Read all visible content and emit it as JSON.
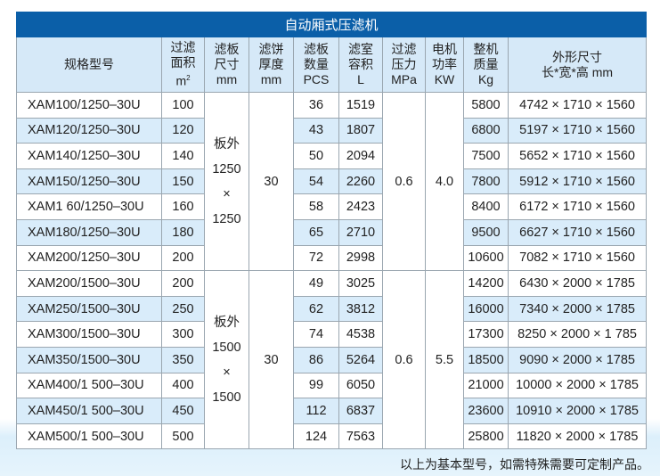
{
  "title": "自动厢式压滤机",
  "headers": [
    {
      "l1": "规格型号"
    },
    {
      "l1": "过滤",
      "l2": "面积",
      "l3": "m",
      "sup": "2"
    },
    {
      "l1": "滤板",
      "l2": "尺寸",
      "l3": "mm"
    },
    {
      "l1": "滤饼",
      "l2": "厚度",
      "l3": "mm"
    },
    {
      "l1": "滤板",
      "l2": "数量",
      "l3": "PCS"
    },
    {
      "l1": "滤室",
      "l2": "容积",
      "l3": "L"
    },
    {
      "l1": "过滤",
      "l2": "压力",
      "l3": "MPa"
    },
    {
      "l1": "电机",
      "l2": "功率",
      "l3": "KW"
    },
    {
      "l1": "整机",
      "l2": "质量",
      "l3": "Kg"
    },
    {
      "l1": "外形尺寸",
      "l2": "长*宽*高 mm"
    }
  ],
  "groups": [
    {
      "plate": {
        "a": "板外",
        "b": "1250",
        "c": "×",
        "d": "1250"
      },
      "cake": "30",
      "pressure": "0.6",
      "power": "4.0",
      "rows": [
        [
          "XAM100/1250–30U",
          "100",
          "36",
          "1519",
          "5800",
          "4742 × 1710 × 1560"
        ],
        [
          "XAM120/1250–30U",
          "120",
          "43",
          "1807",
          "6800",
          "5197 × 1710 × 1560"
        ],
        [
          "XAM140/1250–30U",
          "140",
          "50",
          "2094",
          "7500",
          "5652 × 1710 × 1560"
        ],
        [
          "XAM150/1250–30U",
          "150",
          "54",
          "2260",
          "7800",
          "5912 × 1710 × 1560"
        ],
        [
          "XAM1 60/1250–30U",
          "160",
          "58",
          "2423",
          "8400",
          "6172 × 1710 × 1560"
        ],
        [
          "XAM180/1250–30U",
          "180",
          "65",
          "2710",
          "9500",
          "6627 × 1710 × 1560"
        ],
        [
          "XAM200/1250–30U",
          "200",
          "72",
          "2998",
          "10600",
          "7082 × 1710 × 1560"
        ]
      ]
    },
    {
      "plate": {
        "a": "板外",
        "b": "1500",
        "c": "×",
        "d": "1500"
      },
      "cake": "30",
      "pressure": "0.6",
      "power": "5.5",
      "rows": [
        [
          "XAM200/1500–30U",
          "200",
          "49",
          "3025",
          "14200",
          "6430 × 2000 × 1785"
        ],
        [
          "XAM250/1500–30U",
          "250",
          "62",
          "3812",
          "16000",
          "7340 × 2000 × 1785"
        ],
        [
          "XAM300/1500–30U",
          "300",
          "74",
          "4538",
          "17300",
          "8250 × 2000 × 1 785"
        ],
        [
          "XAM350/1500–30U",
          "350",
          "86",
          "5264",
          "18500",
          "9090 × 2000 × 1785"
        ],
        [
          "XAM400/1 500–30U",
          "400",
          "99",
          "6050",
          "21000",
          "10000 × 2000 × 1785"
        ],
        [
          "XAM450/1 500–30U",
          "450",
          "112",
          "6837",
          "23600",
          "10910 × 2000 × 1785"
        ],
        [
          "XAM500/1 500–30U",
          "500",
          "124",
          "7563",
          "25800",
          "11820 × 2000 × 1785"
        ]
      ]
    }
  ],
  "shaded_rows": [
    [
      1,
      3,
      5
    ],
    [
      1,
      3,
      5
    ]
  ],
  "note": "以上为基本型号，如需特殊需要可定制产品。",
  "colors": {
    "title_bg": "#0b5fa8",
    "header_bg": "#d6e9f8",
    "row_shade": "#d9ecfa"
  }
}
